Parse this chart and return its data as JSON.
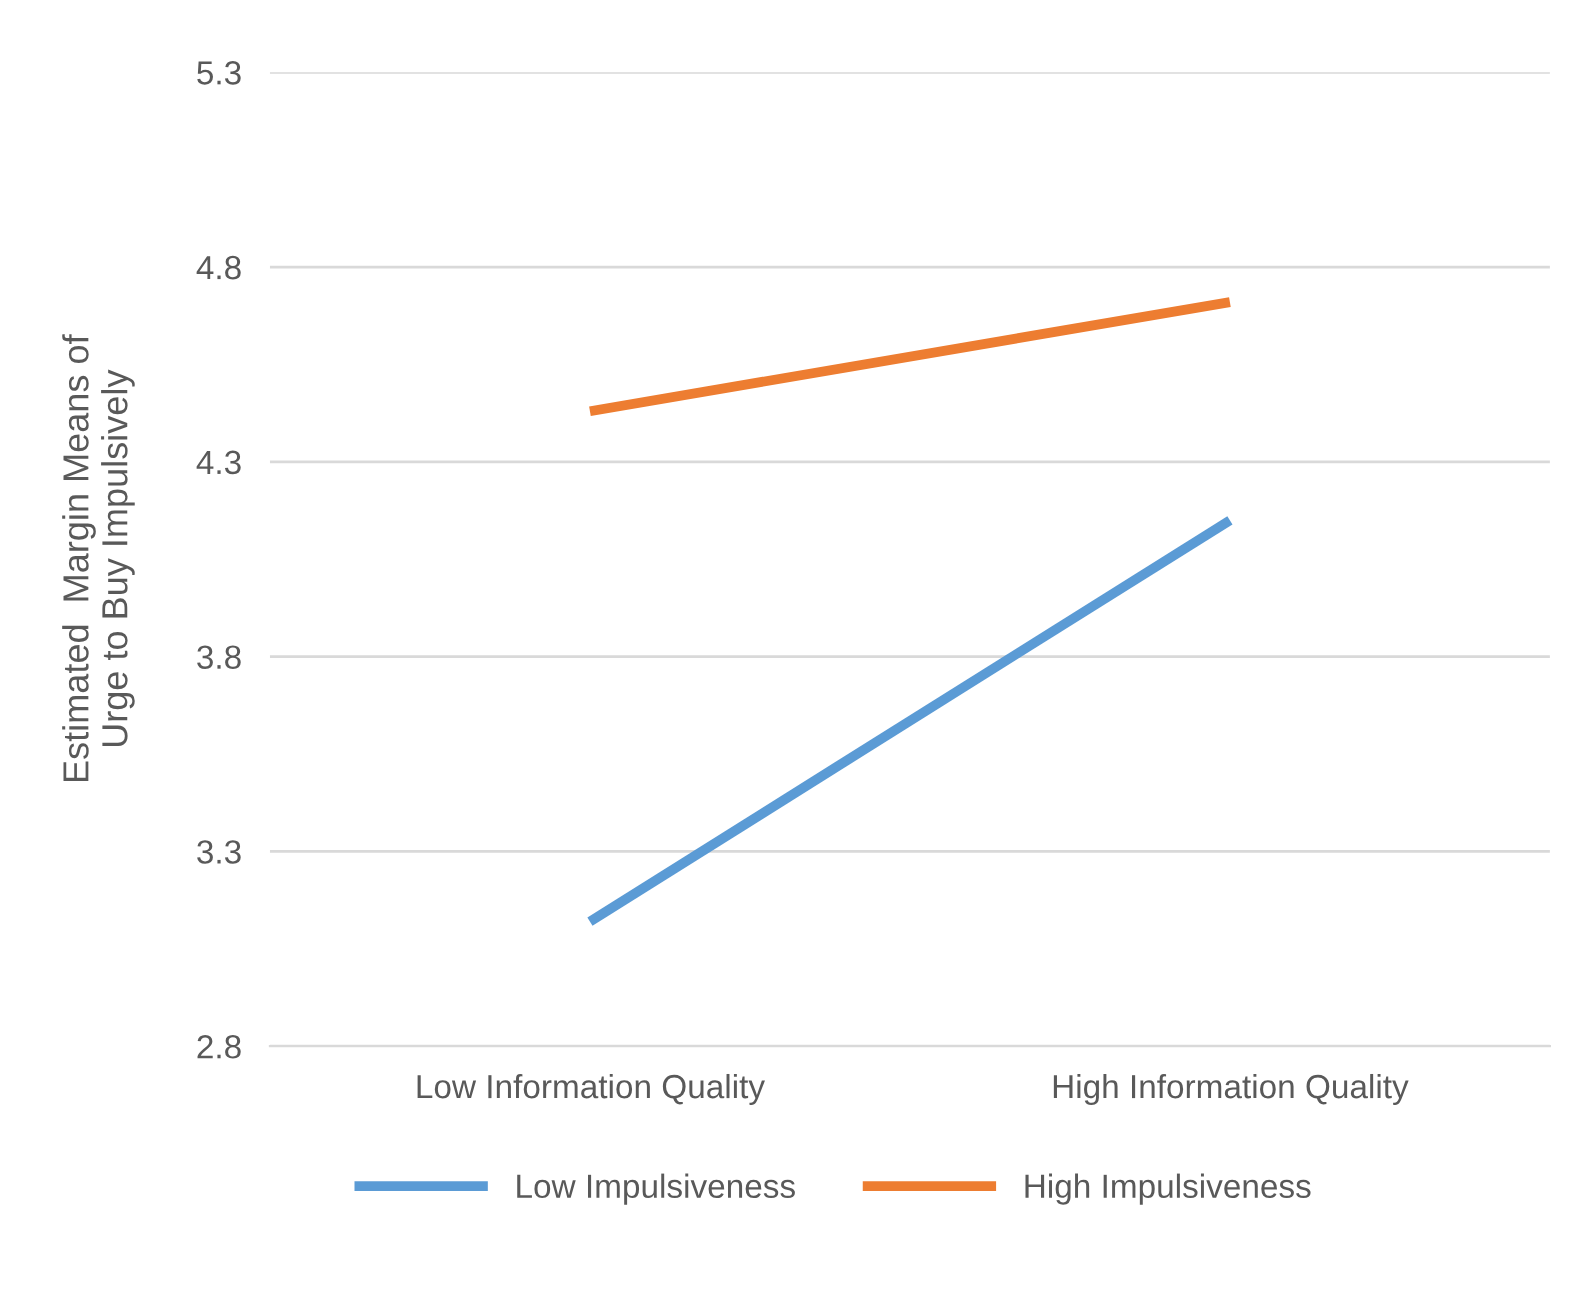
{
  "chart_data": {
    "type": "line",
    "ylabel": "Estimated  Margin Means of\nUrge to Buy Impulsively",
    "categories": [
      "Low Information Quality",
      "High Information Quality"
    ],
    "series": [
      {
        "name": "Low Impulsiveness",
        "color": "#5b9bd5",
        "values": [
          3.12,
          4.15
        ]
      },
      {
        "name": "High Impulsiveness",
        "color": "#ed7d31",
        "values": [
          4.43,
          4.71
        ]
      }
    ],
    "ylim": [
      2.8,
      5.3
    ],
    "yticks": [
      2.8,
      3.3,
      3.8,
      4.3,
      4.8,
      5.3
    ],
    "grid": "y",
    "legend": "bottom",
    "marker": "none",
    "line_style": "solid"
  }
}
